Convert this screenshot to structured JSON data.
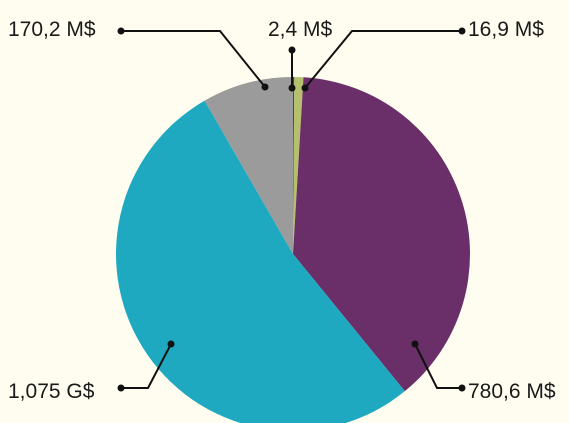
{
  "chart_data": {
    "type": "pie",
    "start_angle_deg": 0,
    "direction": "clockwise",
    "slices": [
      {
        "label": "2,4 M$",
        "value": 2.4,
        "color": "#4a4a3a"
      },
      {
        "label": "16,9 M$",
        "value": 16.9,
        "color": "#b5c06f"
      },
      {
        "label": "780,6 M$",
        "value": 780.6,
        "color": "#6a2e68"
      },
      {
        "label": "1,075 G$",
        "value": 1075.0,
        "color": "#1ea9c1"
      },
      {
        "label": "170,2 M$",
        "value": 170.2,
        "color": "#9a9b9a"
      }
    ],
    "unit": "M$",
    "title": "",
    "legend": "none"
  },
  "colors": {
    "background": "#fffdf0",
    "callout": "#111111"
  }
}
